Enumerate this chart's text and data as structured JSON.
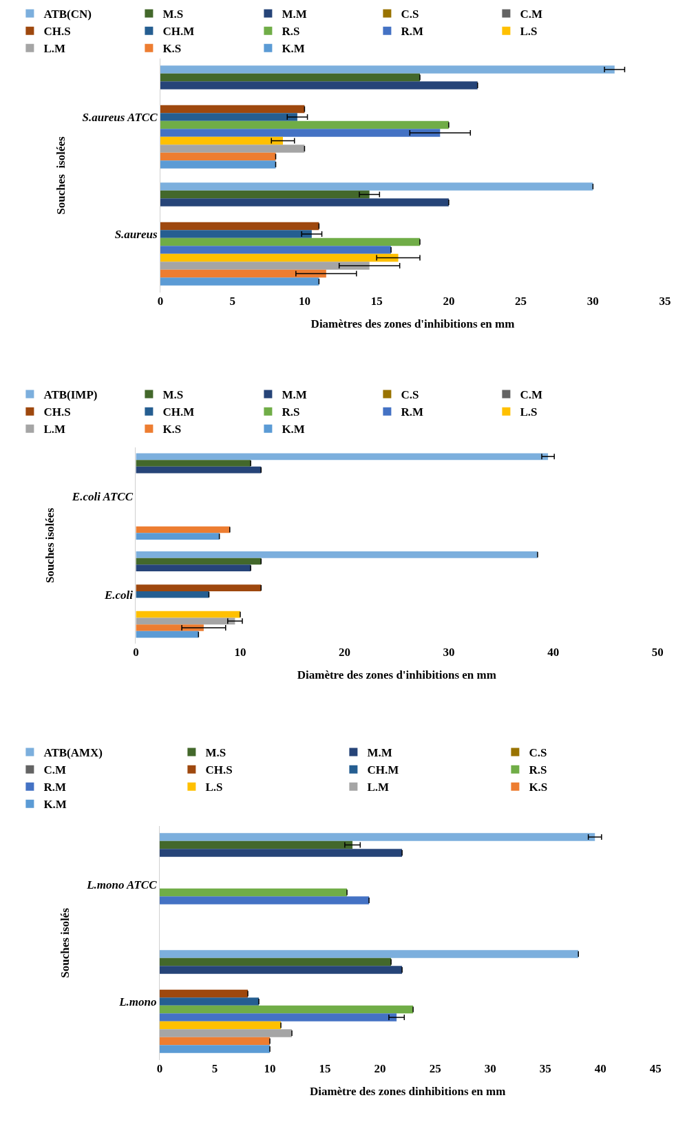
{
  "chart_data": [
    {
      "type": "bar",
      "orientation": "horizontal",
      "xlabel": "Diamètres des zones d'inhibitions en mm",
      "ylabel": "Souches  isolées",
      "categories": [
        "S.aureus ATCC",
        "S.aureus"
      ],
      "xlim": [
        0,
        35
      ],
      "xticks": [
        0,
        5,
        10,
        15,
        20,
        25,
        30,
        35
      ],
      "legend": "top",
      "series": [
        {
          "name": "ATB(CN)",
          "color": "#7cafdd",
          "values": [
            31.5,
            30
          ],
          "errors": [
            0.7,
            null
          ]
        },
        {
          "name": "M.S",
          "color": "#43682b",
          "values": [
            18,
            14.5
          ],
          "errors": [
            null,
            0.7
          ]
        },
        {
          "name": "M.M",
          "color": "#264478",
          "values": [
            22,
            20
          ],
          "errors": [
            null,
            null
          ]
        },
        {
          "name": "C.S",
          "color": "#997300",
          "values": [
            null,
            null
          ],
          "errors": [
            null,
            null
          ]
        },
        {
          "name": "C.M",
          "color": "#636363",
          "values": [
            null,
            null
          ],
          "errors": [
            null,
            null
          ]
        },
        {
          "name": "CH.S",
          "color": "#9e480e",
          "values": [
            10,
            11
          ],
          "errors": [
            null,
            null
          ]
        },
        {
          "name": "CH.M",
          "color": "#255e91",
          "values": [
            9.5,
            10.5
          ],
          "errors": [
            0.7,
            0.7
          ]
        },
        {
          "name": "R.S",
          "color": "#70ad47",
          "values": [
            20,
            18
          ],
          "errors": [
            null,
            null
          ]
        },
        {
          "name": "R.M",
          "color": "#4472c4",
          "values": [
            19.4,
            16
          ],
          "errors": [
            2.1,
            null
          ]
        },
        {
          "name": "L.S",
          "color": "#ffc000",
          "values": [
            8.5,
            16.5
          ],
          "errors": [
            0.8,
            1.5
          ]
        },
        {
          "name": "L.M",
          "color": "#a5a5a5",
          "values": [
            10,
            14.5
          ],
          "errors": [
            null,
            2.1
          ]
        },
        {
          "name": "K.S",
          "color": "#ed7d31",
          "values": [
            8,
            11.5
          ],
          "errors": [
            null,
            2.1
          ]
        },
        {
          "name": "K.M",
          "color": "#5b9bd5",
          "values": [
            8,
            11
          ],
          "errors": [
            null,
            null
          ]
        }
      ]
    },
    {
      "type": "bar",
      "orientation": "horizontal",
      "xlabel": "Diamètre des zones d'inhibitions en mm",
      "ylabel": "Souches isolées",
      "categories": [
        "E.coli ATCC",
        "E.coli"
      ],
      "xlim": [
        0,
        50
      ],
      "xticks": [
        0,
        10,
        20,
        30,
        40,
        50
      ],
      "legend": "top",
      "series": [
        {
          "name": "ATB(IMP)",
          "color": "#7cafdd",
          "values": [
            39.5,
            38.5
          ],
          "errors": [
            0.6,
            null
          ]
        },
        {
          "name": "M.S",
          "color": "#43682b",
          "values": [
            11,
            12
          ],
          "errors": [
            null,
            null
          ]
        },
        {
          "name": "M.M",
          "color": "#264478",
          "values": [
            12,
            11
          ],
          "errors": [
            null,
            null
          ]
        },
        {
          "name": "C.S",
          "color": "#997300",
          "values": [
            null,
            null
          ],
          "errors": [
            null,
            null
          ]
        },
        {
          "name": "C.M",
          "color": "#636363",
          "values": [
            null,
            null
          ],
          "errors": [
            null,
            null
          ]
        },
        {
          "name": "CH.S",
          "color": "#9e480e",
          "values": [
            null,
            12
          ],
          "errors": [
            null,
            null
          ]
        },
        {
          "name": "CH.M",
          "color": "#255e91",
          "values": [
            null,
            7
          ],
          "errors": [
            null,
            null
          ]
        },
        {
          "name": "R.S",
          "color": "#70ad47",
          "values": [
            null,
            null
          ],
          "errors": [
            null,
            null
          ]
        },
        {
          "name": "R.M",
          "color": "#4472c4",
          "values": [
            null,
            null
          ],
          "errors": [
            null,
            null
          ]
        },
        {
          "name": "L.S",
          "color": "#ffc000",
          "values": [
            null,
            10
          ],
          "errors": [
            null,
            null
          ]
        },
        {
          "name": "L.M",
          "color": "#a5a5a5",
          "values": [
            null,
            9.5
          ],
          "errors": [
            null,
            0.7
          ]
        },
        {
          "name": "K.S",
          "color": "#ed7d31",
          "values": [
            9,
            6.5
          ],
          "errors": [
            null,
            2.1
          ]
        },
        {
          "name": "K.M",
          "color": "#5b9bd5",
          "values": [
            8,
            6
          ],
          "errors": [
            null,
            null
          ]
        }
      ]
    },
    {
      "type": "bar",
      "orientation": "horizontal",
      "xlabel": "Diamètre des zones dinhibitions en mm",
      "ylabel": "Souches isolés",
      "categories": [
        "L.mono ATCC",
        "L.mono"
      ],
      "xlim": [
        0,
        45
      ],
      "xticks": [
        0,
        5,
        10,
        15,
        20,
        25,
        30,
        35,
        40,
        45
      ],
      "legend": "top",
      "series": [
        {
          "name": "ATB(AMX)",
          "color": "#7cafdd",
          "values": [
            39.5,
            38
          ],
          "errors": [
            0.6,
            null
          ]
        },
        {
          "name": "M.S",
          "color": "#43682b",
          "values": [
            17.5,
            21
          ],
          "errors": [
            0.7,
            null
          ]
        },
        {
          "name": "M.M",
          "color": "#264478",
          "values": [
            22,
            22
          ],
          "errors": [
            null,
            null
          ]
        },
        {
          "name": "C.S",
          "color": "#997300",
          "values": [
            null,
            null
          ],
          "errors": [
            null,
            null
          ]
        },
        {
          "name": "C.M",
          "color": "#636363",
          "values": [
            null,
            null
          ],
          "errors": [
            null,
            null
          ]
        },
        {
          "name": "CH.S",
          "color": "#9e480e",
          "values": [
            null,
            8
          ],
          "errors": [
            null,
            null
          ]
        },
        {
          "name": "CH.M",
          "color": "#255e91",
          "values": [
            null,
            9
          ],
          "errors": [
            null,
            null
          ]
        },
        {
          "name": "R.S",
          "color": "#70ad47",
          "values": [
            17,
            23
          ],
          "errors": [
            null,
            null
          ]
        },
        {
          "name": "R.M",
          "color": "#4472c4",
          "values": [
            19,
            21.5
          ],
          "errors": [
            null,
            0.7
          ]
        },
        {
          "name": "L.S",
          "color": "#ffc000",
          "values": [
            null,
            11
          ],
          "errors": [
            null,
            null
          ]
        },
        {
          "name": "L.M",
          "color": "#a5a5a5",
          "values": [
            null,
            12
          ],
          "errors": [
            null,
            null
          ]
        },
        {
          "name": "K.S",
          "color": "#ed7d31",
          "values": [
            null,
            10
          ],
          "errors": [
            null,
            null
          ]
        },
        {
          "name": "K.M",
          "color": "#5b9bd5",
          "values": [
            null,
            10
          ],
          "errors": [
            null,
            null
          ]
        }
      ]
    }
  ]
}
